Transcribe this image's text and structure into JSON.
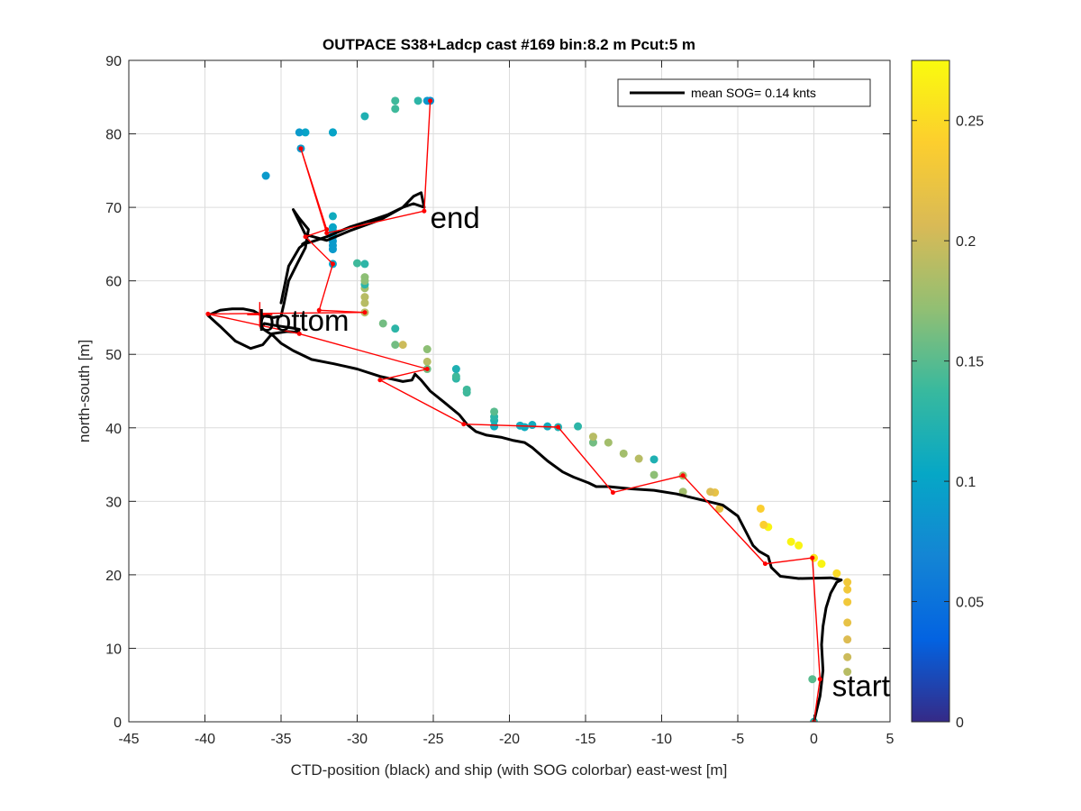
{
  "chart_data": {
    "type": "scatter",
    "title": "OUTPACE S38+Ladcp cast #169 bin:8.2 m  Pcut:5 m",
    "xlabel": "CTD-position (black) and ship (with SOG colorbar) east-west [m]",
    "ylabel": "north-south [m]",
    "xlim": [
      -45,
      5
    ],
    "ylim": [
      0,
      90
    ],
    "xticks": [
      -45,
      -40,
      -35,
      -30,
      -25,
      -20,
      -15,
      -10,
      -5,
      0,
      5
    ],
    "yticks": [
      0,
      10,
      20,
      30,
      40,
      50,
      60,
      70,
      80,
      90
    ],
    "grid": true,
    "legend": {
      "placement": "top-right",
      "entries": [
        {
          "label": "mean SOG=  0.14 knts",
          "color": "#000000"
        }
      ]
    },
    "colorbar": {
      "lim": [
        0,
        0.275
      ],
      "ticks": [
        0,
        0.05,
        0.1,
        0.15,
        0.2,
        0.25
      ],
      "colormap": "parula"
    },
    "annotations": [
      {
        "text": "start",
        "x": 1.2,
        "y": 3.5
      },
      {
        "text": "bottom",
        "x": -36.5,
        "y": 53.2
      },
      {
        "text": "end",
        "x": -25.2,
        "y": 67.2
      }
    ],
    "bottom_marker": {
      "x": -36.4,
      "y": 55.4
    },
    "ctd_path": {
      "name": "CTD-position",
      "color": "#000000",
      "x": [
        0.0,
        0.4,
        0.6,
        0.5,
        0.6,
        0.8,
        1.1,
        1.5,
        1.8,
        1.1,
        -1.0,
        -2.2,
        -2.8,
        -3.0,
        -3.6,
        -4.0,
        -4.5,
        -5.0,
        -6.0,
        -7.0,
        -8.0,
        -9.0,
        -10.5,
        -12.0,
        -13.5,
        -14.3,
        -14.8,
        -15.8,
        -16.5,
        -17.5,
        -18.5,
        -19.0,
        -19.8,
        -20.5,
        -21.5,
        -22.2,
        -22.8,
        -23.3,
        -24.3,
        -25.2,
        -25.8,
        -26.2,
        -26.4,
        -27.0,
        -28.5,
        -30.0,
        -31.5,
        -33.0,
        -34.2,
        -35.0,
        -35.5,
        -36.0,
        -36.3,
        -36.1,
        -35.6,
        -35.0,
        -34.3,
        -33.8,
        -33.9,
        -34.6,
        -35.6,
        -36.2,
        -37.0,
        -38.0,
        -39.0,
        -39.8,
        -39.0,
        -38.2,
        -37.5,
        -36.8,
        -36.3,
        -35.5,
        -35.0,
        -34.8,
        -34.5,
        -33.9,
        -33.4,
        -33.2,
        -33.8,
        -34.2,
        -33.4,
        -32.0,
        -30.5,
        -28.5,
        -27.0,
        -26.3,
        -25.8,
        -25.6,
        -26.3,
        -27.0,
        -28.0,
        -29.0,
        -30.5,
        -32.0,
        -33.0,
        -33.6,
        -33.2,
        -33.8,
        -34.5,
        -35.0
      ],
      "y": [
        0.0,
        3.5,
        7.0,
        10.5,
        13.0,
        15.5,
        17.5,
        19.0,
        19.3,
        19.6,
        19.5,
        19.8,
        21.0,
        22.5,
        23.2,
        24.0,
        26.0,
        28.0,
        29.5,
        30.0,
        30.5,
        31.0,
        31.5,
        31.7,
        32.0,
        32.0,
        32.5,
        33.3,
        34.0,
        35.5,
        37.3,
        38.0,
        38.3,
        38.7,
        39.0,
        39.5,
        40.5,
        41.8,
        43.5,
        45.0,
        46.5,
        47.3,
        46.5,
        46.3,
        47.0,
        48.0,
        48.7,
        49.3,
        50.5,
        51.5,
        52.5,
        53.2,
        53.6,
        54.2,
        54.0,
        53.8,
        53.6,
        53.4,
        53.0,
        53.1,
        52.8,
        51.3,
        50.8,
        51.8,
        53.8,
        55.3,
        56.0,
        56.2,
        56.2,
        55.9,
        55.3,
        55.0,
        55.2,
        57.0,
        60.0,
        62.5,
        64.5,
        67.0,
        68.5,
        69.7,
        66.3,
        65.5,
        66.8,
        68.3,
        70.0,
        71.5,
        72.0,
        70.0,
        70.5,
        70.0,
        69.0,
        68.3,
        67.3,
        66.0,
        65.3,
        65.0,
        65.5,
        64.5,
        62.0,
        57.0
      ]
    },
    "ladcp_path": {
      "name": "Ladcp",
      "color": "#ff0000",
      "x": [
        0.0,
        0.4,
        -0.1,
        -3.2,
        -8.6,
        -13.2,
        -16.8,
        -23.0,
        -28.5,
        -25.4,
        -33.8,
        -39.8,
        -29.5,
        -32.5,
        -31.6,
        -33.4,
        -32.0,
        -33.7,
        -32.0,
        -25.6,
        -25.2
      ],
      "y": [
        0.0,
        5.8,
        22.3,
        21.5,
        33.5,
        31.2,
        40.1,
        40.5,
        46.5,
        48.0,
        52.8,
        55.5,
        55.7,
        56.0,
        62.3,
        66.0,
        67.0,
        78.0,
        66.5,
        69.5,
        84.5
      ]
    },
    "ship_points": {
      "name": "ship (with SOG colorbar)",
      "x": [
        0.0,
        -0.1,
        2.2,
        2.2,
        2.2,
        2.2,
        2.2,
        2.2,
        2.2,
        1.5,
        0.5,
        0.0,
        -1.0,
        -1.5,
        -3.0,
        -3.3,
        -3.5,
        -6.2,
        -6.5,
        -6.8,
        -8.6,
        -8.6,
        -10.5,
        -10.5,
        -11.5,
        -12.5,
        -13.5,
        -14.5,
        -14.5,
        -15.5,
        -16.8,
        -17.5,
        -18.5,
        -19.0,
        -19.3,
        -21.0,
        -21.0,
        -21.0,
        -21.0,
        -22.8,
        -22.8,
        -23.5,
        -23.5,
        -23.5,
        -25.4,
        -25.4,
        -25.4,
        -27.0,
        -27.5,
        -27.5,
        -28.3,
        -29.5,
        -29.5,
        -29.5,
        -29.5,
        -29.5,
        -29.5,
        -29.5,
        -29.5,
        -30.0,
        -31.6,
        -31.6,
        -31.6,
        -31.6,
        -31.6,
        -31.6,
        -31.6,
        -31.6,
        -31.6,
        -31.6,
        -29.5,
        -27.5,
        -27.5,
        -33.7,
        -33.4,
        -33.8,
        -31.6,
        -36.0,
        -26.0,
        -25.4,
        -25.2
      ],
      "y": [
        0.0,
        5.8,
        6.8,
        8.8,
        11.2,
        13.5,
        16.3,
        18.0,
        19.0,
        20.2,
        21.5,
        22.3,
        24.0,
        24.5,
        26.5,
        26.8,
        29.0,
        29.0,
        31.2,
        31.3,
        31.3,
        33.5,
        33.6,
        35.7,
        35.8,
        36.5,
        38.0,
        38.0,
        38.8,
        40.2,
        40.1,
        40.2,
        40.4,
        40.1,
        40.3,
        40.2,
        41.0,
        41.5,
        42.2,
        44.8,
        45.2,
        46.7,
        47.0,
        48.0,
        49.0,
        50.7,
        48.0,
        51.3,
        51.3,
        53.5,
        54.2,
        55.7,
        57.0,
        57.8,
        59.0,
        59.5,
        60.5,
        60.0,
        62.3,
        62.4,
        62.3,
        64.3,
        64.8,
        65.4,
        66.0,
        66.5,
        66.8,
        67.3,
        68.8,
        80.2,
        82.4,
        83.4,
        84.5,
        78.0,
        80.2,
        80.2,
        80.2,
        74.3,
        84.5,
        84.5,
        84.5
      ],
      "sog": [
        0.13,
        0.15,
        0.19,
        0.2,
        0.21,
        0.22,
        0.23,
        0.23,
        0.23,
        0.25,
        0.27,
        0.26,
        0.27,
        0.27,
        0.27,
        0.24,
        0.24,
        0.22,
        0.22,
        0.21,
        0.18,
        0.18,
        0.17,
        0.12,
        0.19,
        0.18,
        0.18,
        0.16,
        0.19,
        0.13,
        0.12,
        0.11,
        0.11,
        0.11,
        0.11,
        0.11,
        0.12,
        0.13,
        0.15,
        0.14,
        0.14,
        0.13,
        0.14,
        0.12,
        0.19,
        0.17,
        0.16,
        0.2,
        0.16,
        0.13,
        0.16,
        0.19,
        0.19,
        0.19,
        0.18,
        0.13,
        0.17,
        0.17,
        0.13,
        0.14,
        0.1,
        0.09,
        0.09,
        0.09,
        0.09,
        0.1,
        0.1,
        0.1,
        0.11,
        0.1,
        0.12,
        0.14,
        0.14,
        0.09,
        0.1,
        0.09,
        0.1,
        0.09,
        0.13,
        0.09,
        0.08
      ]
    }
  }
}
